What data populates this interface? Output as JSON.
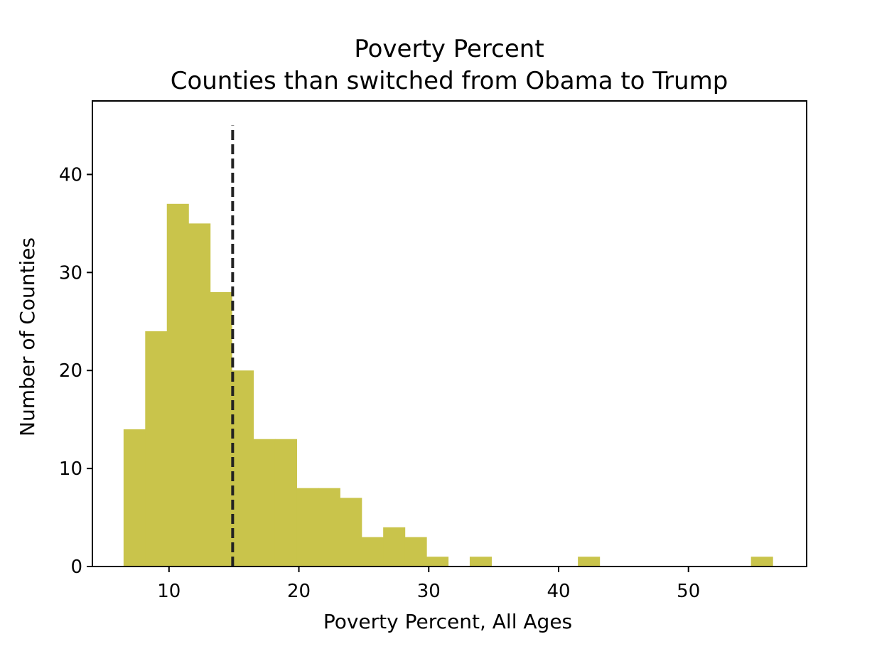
{
  "chart_data": {
    "type": "bar",
    "title": "Poverty Percent",
    "subtitle": "Counties than switched from Obama to Trump",
    "xlabel": "Poverty Percent, All Ages",
    "ylabel": "Number of Counties",
    "xlim": [
      4.1,
      59.1
    ],
    "ylim": [
      0,
      47.5
    ],
    "xticks": [
      10,
      20,
      30,
      40,
      50
    ],
    "yticks": [
      0,
      10,
      20,
      30,
      40
    ],
    "bin_edges": [
      6.5,
      8.166,
      9.832,
      11.498,
      13.164,
      14.83,
      16.496,
      18.162,
      19.828,
      21.494,
      23.16,
      24.826,
      26.492,
      28.158,
      29.824,
      31.49,
      33.156,
      34.822,
      36.488,
      38.154,
      39.82,
      41.486,
      43.152,
      44.818,
      46.484,
      48.15,
      49.816,
      51.482,
      53.148,
      54.814,
      56.48
    ],
    "values": [
      14,
      24,
      37,
      35,
      28,
      20,
      13,
      13,
      8,
      8,
      7,
      3,
      4,
      3,
      1,
      0,
      1,
      0,
      0,
      0,
      0,
      1,
      0,
      0,
      0,
      0,
      0,
      0,
      0,
      1
    ],
    "bar_color": "#c9c44b",
    "mean_line": {
      "x": 14.9,
      "style": "dashed",
      "color": "#222222"
    },
    "grid": false,
    "legend": "none"
  }
}
